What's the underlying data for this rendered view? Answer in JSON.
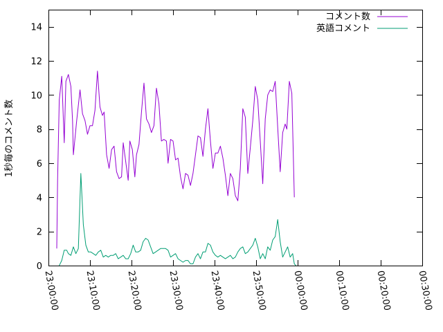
{
  "chart_data": {
    "type": "line",
    "title": "",
    "xlabel": "",
    "ylabel": "1秒毎のコメント数",
    "xlim": [
      "23:00:00",
      "00:30:00"
    ],
    "ylim": [
      0,
      15
    ],
    "x_ticks": [
      "23:00:00",
      "23:10:00",
      "23:20:00",
      "23:30:00",
      "23:40:00",
      "23:50:00",
      "00:00:00",
      "00:10:00",
      "00:20:00",
      "00:30:00"
    ],
    "y_ticks": [
      "0",
      "2",
      "4",
      "6",
      "8",
      "10",
      "12",
      "14"
    ],
    "grid": false,
    "legend_position": "top-right",
    "series": [
      {
        "name": "コメント数",
        "color": "#9400d3",
        "points": [
          [
            "23:02:00",
            1.0
          ],
          [
            "23:02:12",
            5.0
          ],
          [
            "23:02:36",
            9.7
          ],
          [
            "23:03:12",
            11.1
          ],
          [
            "23:03:48",
            7.2
          ],
          [
            "23:04:12",
            10.8
          ],
          [
            "23:04:48",
            11.2
          ],
          [
            "23:05:24",
            10.5
          ],
          [
            "23:05:48",
            8.5
          ],
          [
            "23:06:00",
            6.5
          ],
          [
            "23:06:48",
            8.5
          ],
          [
            "23:07:36",
            10.3
          ],
          [
            "23:08:12",
            8.9
          ],
          [
            "23:08:48",
            8.5
          ],
          [
            "23:09:24",
            7.7
          ],
          [
            "23:10:00",
            8.2
          ],
          [
            "23:10:36",
            8.2
          ],
          [
            "23:11:12",
            9.1
          ],
          [
            "23:11:48",
            11.4
          ],
          [
            "23:12:24",
            9.3
          ],
          [
            "23:13:00",
            8.8
          ],
          [
            "23:13:24",
            9.0
          ],
          [
            "23:14:00",
            6.5
          ],
          [
            "23:14:36",
            5.7
          ],
          [
            "23:15:12",
            6.8
          ],
          [
            "23:15:48",
            7.0
          ],
          [
            "23:16:24",
            5.5
          ],
          [
            "23:17:00",
            5.1
          ],
          [
            "23:17:36",
            5.2
          ],
          [
            "23:18:00",
            7.2
          ],
          [
            "23:18:36",
            6.1
          ],
          [
            "23:19:12",
            5.0
          ],
          [
            "23:19:36",
            7.3
          ],
          [
            "23:20:12",
            6.8
          ],
          [
            "23:20:48",
            5.2
          ],
          [
            "23:21:12",
            6.5
          ],
          [
            "23:21:48",
            7.1
          ],
          [
            "23:22:24",
            9.0
          ],
          [
            "23:23:00",
            10.7
          ],
          [
            "23:23:36",
            8.6
          ],
          [
            "23:24:12",
            8.3
          ],
          [
            "23:24:48",
            7.8
          ],
          [
            "23:25:24",
            8.2
          ],
          [
            "23:26:00",
            10.4
          ],
          [
            "23:26:36",
            9.5
          ],
          [
            "23:27:12",
            7.3
          ],
          [
            "23:27:48",
            7.4
          ],
          [
            "23:28:24",
            7.3
          ],
          [
            "23:28:48",
            6.0
          ],
          [
            "23:29:24",
            7.4
          ],
          [
            "23:30:00",
            7.3
          ],
          [
            "23:30:36",
            6.2
          ],
          [
            "23:31:12",
            6.3
          ],
          [
            "23:31:48",
            5.2
          ],
          [
            "23:32:24",
            4.5
          ],
          [
            "23:33:00",
            5.4
          ],
          [
            "23:33:36",
            5.3
          ],
          [
            "23:34:12",
            4.7
          ],
          [
            "23:34:48",
            5.4
          ],
          [
            "23:35:24",
            6.5
          ],
          [
            "23:36:00",
            7.6
          ],
          [
            "23:36:36",
            7.5
          ],
          [
            "23:37:12",
            6.4
          ],
          [
            "23:37:48",
            8.0
          ],
          [
            "23:38:24",
            9.2
          ],
          [
            "23:39:00",
            7.3
          ],
          [
            "23:39:36",
            5.7
          ],
          [
            "23:40:12",
            6.6
          ],
          [
            "23:40:48",
            6.6
          ],
          [
            "23:41:24",
            7.0
          ],
          [
            "23:42:00",
            6.3
          ],
          [
            "23:42:36",
            5.3
          ],
          [
            "23:43:12",
            4.1
          ],
          [
            "23:43:48",
            5.4
          ],
          [
            "23:44:24",
            5.1
          ],
          [
            "23:45:00",
            4.1
          ],
          [
            "23:45:36",
            3.8
          ],
          [
            "23:46:12",
            5.7
          ],
          [
            "23:46:48",
            9.2
          ],
          [
            "23:47:24",
            8.7
          ],
          [
            "23:48:00",
            5.4
          ],
          [
            "23:48:36",
            6.9
          ],
          [
            "23:49:12",
            8.5
          ],
          [
            "23:49:48",
            10.5
          ],
          [
            "23:50:24",
            9.7
          ],
          [
            "23:51:00",
            7.3
          ],
          [
            "23:51:36",
            4.8
          ],
          [
            "23:52:12",
            8.6
          ],
          [
            "23:52:48",
            10.0
          ],
          [
            "23:53:24",
            10.3
          ],
          [
            "23:54:00",
            10.2
          ],
          [
            "23:54:36",
            10.8
          ],
          [
            "23:55:12",
            8.1
          ],
          [
            "23:55:48",
            5.5
          ],
          [
            "23:56:24",
            7.8
          ],
          [
            "23:57:00",
            8.3
          ],
          [
            "23:57:24",
            8.0
          ],
          [
            "23:58:00",
            10.8
          ],
          [
            "23:58:36",
            10.1
          ],
          [
            "23:59:12",
            4.0
          ]
        ]
      },
      {
        "name": "英語コメント",
        "color": "#009e73",
        "points": [
          [
            "23:02:36",
            0.0
          ],
          [
            "23:03:12",
            0.3
          ],
          [
            "23:03:48",
            0.9
          ],
          [
            "23:04:24",
            0.9
          ],
          [
            "23:04:48",
            0.7
          ],
          [
            "23:05:24",
            0.6
          ],
          [
            "23:06:00",
            1.1
          ],
          [
            "23:06:36",
            0.7
          ],
          [
            "23:07:12",
            1.0
          ],
          [
            "23:07:48",
            5.4
          ],
          [
            "23:08:24",
            2.4
          ],
          [
            "23:09:00",
            1.2
          ],
          [
            "23:09:36",
            0.8
          ],
          [
            "23:10:12",
            0.8
          ],
          [
            "23:10:48",
            0.7
          ],
          [
            "23:11:24",
            0.6
          ],
          [
            "23:12:00",
            0.8
          ],
          [
            "23:12:36",
            0.9
          ],
          [
            "23:13:12",
            0.5
          ],
          [
            "23:13:48",
            0.6
          ],
          [
            "23:14:24",
            0.5
          ],
          [
            "23:15:00",
            0.6
          ],
          [
            "23:15:36",
            0.6
          ],
          [
            "23:16:12",
            0.7
          ],
          [
            "23:16:48",
            0.4
          ],
          [
            "23:17:24",
            0.5
          ],
          [
            "23:18:00",
            0.6
          ],
          [
            "23:18:36",
            0.4
          ],
          [
            "23:19:12",
            0.4
          ],
          [
            "23:19:48",
            0.7
          ],
          [
            "23:20:24",
            1.2
          ],
          [
            "23:21:00",
            0.8
          ],
          [
            "23:21:36",
            0.8
          ],
          [
            "23:22:12",
            0.9
          ],
          [
            "23:22:48",
            1.4
          ],
          [
            "23:23:24",
            1.6
          ],
          [
            "23:24:00",
            1.5
          ],
          [
            "23:24:36",
            1.1
          ],
          [
            "23:25:12",
            0.7
          ],
          [
            "23:25:48",
            0.8
          ],
          [
            "23:26:24",
            0.9
          ],
          [
            "23:27:00",
            1.0
          ],
          [
            "23:27:36",
            1.0
          ],
          [
            "23:28:12",
            1.0
          ],
          [
            "23:28:48",
            0.9
          ],
          [
            "23:29:24",
            0.5
          ],
          [
            "23:30:00",
            0.6
          ],
          [
            "23:30:36",
            0.7
          ],
          [
            "23:31:12",
            0.4
          ],
          [
            "23:31:48",
            0.3
          ],
          [
            "23:32:24",
            0.2
          ],
          [
            "23:33:00",
            0.3
          ],
          [
            "23:33:36",
            0.3
          ],
          [
            "23:34:12",
            0.1
          ],
          [
            "23:34:48",
            0.1
          ],
          [
            "23:35:24",
            0.5
          ],
          [
            "23:36:00",
            0.7
          ],
          [
            "23:36:36",
            0.4
          ],
          [
            "23:37:12",
            0.8
          ],
          [
            "23:37:48",
            0.8
          ],
          [
            "23:38:24",
            1.3
          ],
          [
            "23:39:00",
            1.2
          ],
          [
            "23:39:36",
            0.8
          ],
          [
            "23:40:12",
            0.6
          ],
          [
            "23:40:48",
            0.5
          ],
          [
            "23:41:24",
            0.6
          ],
          [
            "23:42:00",
            0.5
          ],
          [
            "23:42:36",
            0.4
          ],
          [
            "23:43:12",
            0.5
          ],
          [
            "23:43:48",
            0.6
          ],
          [
            "23:44:24",
            0.4
          ],
          [
            "23:45:00",
            0.5
          ],
          [
            "23:45:36",
            0.8
          ],
          [
            "23:46:12",
            1.0
          ],
          [
            "23:46:48",
            1.1
          ],
          [
            "23:47:24",
            0.7
          ],
          [
            "23:48:00",
            0.8
          ],
          [
            "23:48:36",
            1.0
          ],
          [
            "23:49:12",
            1.2
          ],
          [
            "23:49:48",
            1.6
          ],
          [
            "23:50:24",
            1.1
          ],
          [
            "23:51:00",
            0.4
          ],
          [
            "23:51:36",
            0.7
          ],
          [
            "23:52:12",
            0.4
          ],
          [
            "23:52:48",
            1.1
          ],
          [
            "23:53:24",
            0.9
          ],
          [
            "23:54:00",
            1.5
          ],
          [
            "23:54:36",
            1.7
          ],
          [
            "23:55:12",
            2.7
          ],
          [
            "23:55:48",
            1.4
          ],
          [
            "23:56:24",
            0.5
          ],
          [
            "23:57:00",
            0.8
          ],
          [
            "23:57:36",
            1.1
          ],
          [
            "23:58:12",
            0.5
          ],
          [
            "23:58:48",
            0.7
          ],
          [
            "23:59:12",
            0.1
          ],
          [
            "23:59:36",
            0.0
          ]
        ]
      }
    ]
  }
}
